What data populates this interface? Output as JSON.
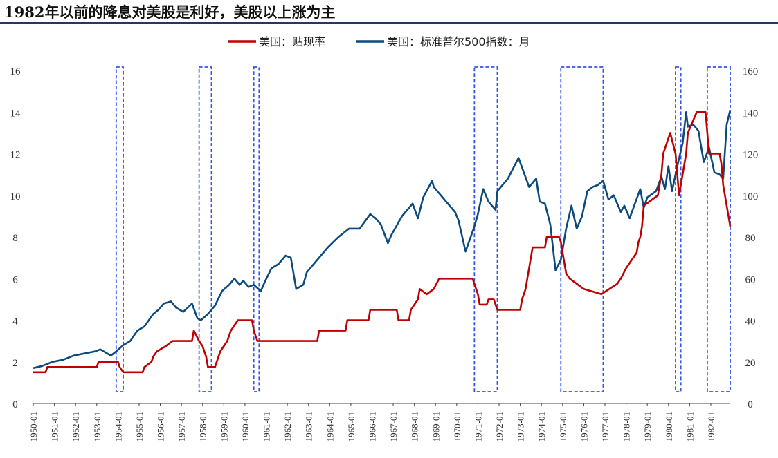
{
  "title": "1982年以前的降息对美股是利好，美股以上涨为主",
  "colors": {
    "rate": "#c00000",
    "sp500": "#0b4a7a",
    "highlight": "#3355ee",
    "axis": "#444444",
    "title_rule": "#1f3b63"
  },
  "chart_data": {
    "type": "line",
    "legend_placement": "top-center",
    "grid": false,
    "x_range": [
      "1950-01",
      "1982-12"
    ],
    "x_tick_labels": [
      "1950-01",
      "1951-01",
      "1952-01",
      "1953-01",
      "1954-01",
      "1955-01",
      "1956-01",
      "1957-01",
      "1958-01",
      "1959-01",
      "1960-01",
      "1961-01",
      "1962-01",
      "1963-01",
      "1964-01",
      "1965-01",
      "1966-01",
      "1967-01",
      "1968-01",
      "1969-01",
      "1970-01",
      "1971-01",
      "1972-01",
      "1973-01",
      "1974-01",
      "1975-01",
      "1976-01",
      "1977-01",
      "1978-01",
      "1979-01",
      "1980-01",
      "1981-01",
      "1982-01"
    ],
    "left_axis": {
      "min": 0,
      "max": 16,
      "tick_labels": [
        "0",
        "2",
        "4",
        "6",
        "8",
        "10",
        "12",
        "14",
        "16"
      ]
    },
    "right_axis": {
      "min": 0,
      "max": 160,
      "tick_labels": [
        "0",
        "20",
        "40",
        "60",
        "80",
        "100",
        "120",
        "140",
        "160"
      ]
    },
    "highlight_periods": [
      [
        "1953-12",
        "1954-04"
      ],
      [
        "1957-11",
        "1958-06"
      ],
      [
        "1960-06",
        "1960-09"
      ],
      [
        "1970-11",
        "1971-12"
      ],
      [
        "1974-12",
        "1976-12"
      ],
      [
        "1980-05",
        "1980-08"
      ],
      [
        "1981-11",
        "1982-12"
      ]
    ],
    "series": [
      {
        "name": "美国：贴现率",
        "axis": "left",
        "points": [
          [
            "1950-01",
            1.5
          ],
          [
            "1950-08",
            1.5
          ],
          [
            "1950-09",
            1.75
          ],
          [
            "1953-01",
            1.75
          ],
          [
            "1953-02",
            2.0
          ],
          [
            "1954-01",
            2.0
          ],
          [
            "1954-02",
            1.75
          ],
          [
            "1954-04",
            1.5
          ],
          [
            "1955-03",
            1.5
          ],
          [
            "1955-04",
            1.75
          ],
          [
            "1955-08",
            2.0
          ],
          [
            "1955-09",
            2.25
          ],
          [
            "1955-11",
            2.5
          ],
          [
            "1956-04",
            2.75
          ],
          [
            "1956-08",
            3.0
          ],
          [
            "1957-07",
            3.0
          ],
          [
            "1957-08",
            3.5
          ],
          [
            "1957-11",
            3.0
          ],
          [
            "1958-01",
            2.75
          ],
          [
            "1958-03",
            2.25
          ],
          [
            "1958-04",
            1.75
          ],
          [
            "1958-08",
            1.75
          ],
          [
            "1958-09",
            2.0
          ],
          [
            "1958-11",
            2.5
          ],
          [
            "1959-03",
            3.0
          ],
          [
            "1959-05",
            3.5
          ],
          [
            "1959-09",
            4.0
          ],
          [
            "1960-05",
            4.0
          ],
          [
            "1960-06",
            3.5
          ],
          [
            "1960-08",
            3.0
          ],
          [
            "1963-06",
            3.0
          ],
          [
            "1963-07",
            3.5
          ],
          [
            "1964-10",
            3.5
          ],
          [
            "1964-11",
            4.0
          ],
          [
            "1965-11",
            4.0
          ],
          [
            "1965-12",
            4.5
          ],
          [
            "1967-03",
            4.5
          ],
          [
            "1967-04",
            4.0
          ],
          [
            "1967-10",
            4.0
          ],
          [
            "1967-11",
            4.5
          ],
          [
            "1968-03",
            5.0
          ],
          [
            "1968-04",
            5.5
          ],
          [
            "1968-08",
            5.25
          ],
          [
            "1968-12",
            5.5
          ],
          [
            "1969-03",
            6.0
          ],
          [
            "1970-10",
            6.0
          ],
          [
            "1970-11",
            5.75
          ],
          [
            "1971-01",
            5.25
          ],
          [
            "1971-02",
            4.75
          ],
          [
            "1971-06",
            4.75
          ],
          [
            "1971-07",
            5.0
          ],
          [
            "1971-10",
            5.0
          ],
          [
            "1971-11",
            4.75
          ],
          [
            "1971-12",
            4.5
          ],
          [
            "1973-01",
            4.5
          ],
          [
            "1973-02",
            5.0
          ],
          [
            "1973-04",
            5.5
          ],
          [
            "1973-05",
            6.0
          ],
          [
            "1973-06",
            6.5
          ],
          [
            "1973-07",
            7.0
          ],
          [
            "1973-08",
            7.5
          ],
          [
            "1974-03",
            7.5
          ],
          [
            "1974-04",
            8.0
          ],
          [
            "1974-11",
            8.0
          ],
          [
            "1974-12",
            7.75
          ],
          [
            "1975-01",
            7.25
          ],
          [
            "1975-02",
            6.75
          ],
          [
            "1975-03",
            6.25
          ],
          [
            "1975-05",
            6.0
          ],
          [
            "1976-01",
            5.5
          ],
          [
            "1976-11",
            5.25
          ],
          [
            "1977-08",
            5.75
          ],
          [
            "1977-10",
            6.0
          ],
          [
            "1978-01",
            6.5
          ],
          [
            "1978-05",
            7.0
          ],
          [
            "1978-07",
            7.25
          ],
          [
            "1978-08",
            7.75
          ],
          [
            "1978-09",
            8.0
          ],
          [
            "1978-10",
            8.5
          ],
          [
            "1978-11",
            9.5
          ],
          [
            "1979-07",
            10.0
          ],
          [
            "1979-08",
            10.5
          ],
          [
            "1979-09",
            11.0
          ],
          [
            "1979-10",
            12.0
          ],
          [
            "1980-02",
            13.0
          ],
          [
            "1980-05",
            12.0
          ],
          [
            "1980-06",
            11.0
          ],
          [
            "1980-07",
            10.0
          ],
          [
            "1980-09",
            11.0
          ],
          [
            "1980-11",
            12.0
          ],
          [
            "1980-12",
            13.0
          ],
          [
            "1981-05",
            14.0
          ],
          [
            "1981-10",
            14.0
          ],
          [
            "1981-11",
            13.0
          ],
          [
            "1981-12",
            12.0
          ],
          [
            "1982-06",
            12.0
          ],
          [
            "1982-07",
            11.5
          ],
          [
            "1982-08",
            10.5
          ],
          [
            "1982-10",
            9.5
          ],
          [
            "1982-11",
            9.0
          ],
          [
            "1982-12",
            8.5
          ]
        ]
      },
      {
        "name": "美国：标准普尔500指数：月",
        "axis": "right",
        "points": [
          [
            "1950-01",
            17
          ],
          [
            "1950-06",
            18
          ],
          [
            "1950-12",
            20
          ],
          [
            "1951-06",
            21
          ],
          [
            "1951-12",
            23
          ],
          [
            "1952-06",
            24
          ],
          [
            "1952-12",
            25
          ],
          [
            "1953-03",
            26
          ],
          [
            "1953-09",
            23
          ],
          [
            "1953-12",
            25
          ],
          [
            "1954-04",
            28
          ],
          [
            "1954-08",
            30
          ],
          [
            "1954-12",
            35
          ],
          [
            "1955-04",
            37
          ],
          [
            "1955-09",
            43
          ],
          [
            "1955-12",
            45
          ],
          [
            "1956-03",
            48
          ],
          [
            "1956-07",
            49
          ],
          [
            "1956-10",
            46
          ],
          [
            "1957-02",
            44
          ],
          [
            "1957-07",
            48
          ],
          [
            "1957-10",
            41
          ],
          [
            "1957-12",
            40
          ],
          [
            "1958-04",
            43
          ],
          [
            "1958-08",
            47
          ],
          [
            "1958-12",
            54
          ],
          [
            "1959-04",
            57
          ],
          [
            "1959-07",
            60
          ],
          [
            "1959-10",
            57
          ],
          [
            "1959-12",
            59
          ],
          [
            "1960-03",
            56
          ],
          [
            "1960-06",
            57
          ],
          [
            "1960-10",
            54
          ],
          [
            "1960-12",
            58
          ],
          [
            "1961-04",
            65
          ],
          [
            "1961-08",
            67
          ],
          [
            "1961-12",
            71
          ],
          [
            "1962-03",
            70
          ],
          [
            "1962-06",
            55
          ],
          [
            "1962-10",
            57
          ],
          [
            "1962-12",
            63
          ],
          [
            "1963-06",
            69
          ],
          [
            "1963-12",
            75
          ],
          [
            "1964-06",
            80
          ],
          [
            "1964-12",
            84
          ],
          [
            "1965-06",
            84
          ],
          [
            "1965-12",
            91
          ],
          [
            "1966-03",
            89
          ],
          [
            "1966-06",
            86
          ],
          [
            "1966-10",
            77
          ],
          [
            "1966-12",
            81
          ],
          [
            "1967-06",
            90
          ],
          [
            "1967-12",
            96
          ],
          [
            "1968-03",
            89
          ],
          [
            "1968-06",
            99
          ],
          [
            "1968-11",
            107
          ],
          [
            "1968-12",
            104
          ],
          [
            "1969-06",
            98
          ],
          [
            "1969-12",
            92
          ],
          [
            "1970-02",
            88
          ],
          [
            "1970-06",
            73
          ],
          [
            "1970-11",
            85
          ],
          [
            "1971-01",
            91
          ],
          [
            "1971-04",
            103
          ],
          [
            "1971-07",
            97
          ],
          [
            "1971-11",
            93
          ],
          [
            "1971-12",
            102
          ],
          [
            "1972-06",
            108
          ],
          [
            "1972-12",
            118
          ],
          [
            "1973-06",
            104
          ],
          [
            "1973-10",
            108
          ],
          [
            "1973-12",
            97
          ],
          [
            "1974-03",
            96
          ],
          [
            "1974-06",
            86
          ],
          [
            "1974-09",
            64
          ],
          [
            "1974-12",
            69
          ],
          [
            "1975-03",
            84
          ],
          [
            "1975-06",
            95
          ],
          [
            "1975-09",
            84
          ],
          [
            "1975-12",
            90
          ],
          [
            "1976-03",
            102
          ],
          [
            "1976-06",
            104
          ],
          [
            "1976-09",
            105
          ],
          [
            "1976-12",
            107
          ],
          [
            "1977-03",
            98
          ],
          [
            "1977-06",
            100
          ],
          [
            "1977-10",
            92
          ],
          [
            "1977-12",
            95
          ],
          [
            "1978-03",
            89
          ],
          [
            "1978-06",
            96
          ],
          [
            "1978-09",
            103
          ],
          [
            "1978-11",
            94
          ],
          [
            "1979-01",
            99
          ],
          [
            "1979-06",
            102
          ],
          [
            "1979-09",
            109
          ],
          [
            "1979-11",
            103
          ],
          [
            "1980-01",
            114
          ],
          [
            "1980-03",
            102
          ],
          [
            "1980-06",
            114
          ],
          [
            "1980-09",
            125
          ],
          [
            "1980-11",
            140
          ],
          [
            "1980-12",
            133
          ],
          [
            "1981-03",
            134
          ],
          [
            "1981-06",
            131
          ],
          [
            "1981-09",
            116
          ],
          [
            "1981-12",
            123
          ],
          [
            "1982-03",
            111
          ],
          [
            "1982-06",
            110
          ],
          [
            "1982-08",
            108
          ],
          [
            "1982-10",
            134
          ],
          [
            "1982-12",
            141
          ]
        ]
      }
    ]
  }
}
